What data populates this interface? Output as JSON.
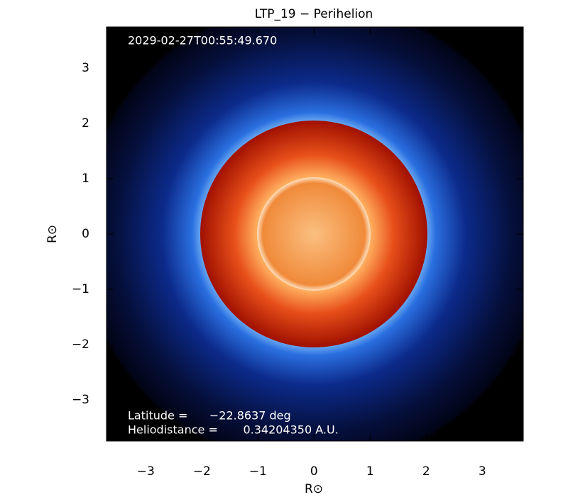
{
  "chart_data": {
    "type": "image",
    "title": "LTP_19 − Perihelion",
    "x_label": "R⊙",
    "y_label": "R⊙",
    "annotations": {
      "time": "2029-02-27T00:55:49.670",
      "latitude": "Latitude =      −22.8637 deg",
      "heliodistance": "Heliodistance =       0.34204350 A.U."
    },
    "xlim": [
      -3.7,
      3.73
    ],
    "ylim": [
      -3.74,
      3.74
    ],
    "xticks": [
      {
        "value": -3,
        "label": "−3"
      },
      {
        "value": -2,
        "label": "−2"
      },
      {
        "value": -1,
        "label": "−1"
      },
      0,
      1,
      2,
      3
    ],
    "yticks": [
      {
        "value": -3,
        "label": "−3"
      },
      {
        "value": -2,
        "label": "−2"
      },
      {
        "value": -1,
        "label": "−1"
      },
      0,
      1,
      2,
      3
    ]
  }
}
